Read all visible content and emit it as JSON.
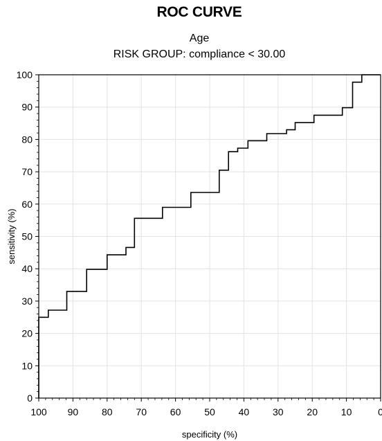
{
  "chart_data": {
    "type": "line",
    "title": "ROC CURVE",
    "subtitle_lines": [
      "Age",
      "RISK GROUP: compliance < 30.00"
    ],
    "xlabel": "specificity (%)",
    "ylabel": "sensitivity (%)",
    "x_reversed": true,
    "xlim": [
      100,
      0
    ],
    "ylim": [
      0,
      100
    ],
    "x_ticks": [
      100,
      90,
      80,
      70,
      60,
      50,
      40,
      30,
      20,
      10,
      0
    ],
    "y_ticks": [
      0,
      10,
      20,
      30,
      40,
      50,
      60,
      70,
      80,
      90,
      100
    ],
    "x_tick_labels": [
      "100",
      "90",
      "80",
      "70",
      "60",
      "50",
      "40",
      "30",
      "20",
      "10",
      "0"
    ],
    "y_tick_labels": [
      "0",
      "10",
      "20",
      "30",
      "40",
      "50",
      "60",
      "70",
      "80",
      "90",
      "100"
    ],
    "grid": true,
    "line_color": "#000000",
    "grid_color": "#e3e3e3",
    "series": [
      {
        "style": "step",
        "specificity": [
          100,
          100,
          97.2,
          97.2,
          91.8,
          91.8,
          86.0,
          86.0,
          80.0,
          80.0,
          74.5,
          74.5,
          72.0,
          72.0,
          63.8,
          63.8,
          55.5,
          55.5,
          47.2,
          47.2,
          44.5,
          44.5,
          41.8,
          41.8,
          38.8,
          38.8,
          33.3,
          33.3,
          27.5,
          27.5,
          25.0,
          25.0,
          19.5,
          19.5,
          11.2,
          11.2,
          8.2,
          8.2,
          5.5,
          5.5,
          0
        ],
        "sensitivity": [
          0,
          25.0,
          25.0,
          27.2,
          27.2,
          33.0,
          33.0,
          39.8,
          39.8,
          44.3,
          44.3,
          46.6,
          46.6,
          55.6,
          55.6,
          59.0,
          59.0,
          63.6,
          63.6,
          70.5,
          70.5,
          76.2,
          76.2,
          77.3,
          77.3,
          79.6,
          79.6,
          81.8,
          81.8,
          83.0,
          83.0,
          85.2,
          85.2,
          87.5,
          87.5,
          89.8,
          89.8,
          97.7,
          97.7,
          100,
          100
        ]
      }
    ]
  }
}
